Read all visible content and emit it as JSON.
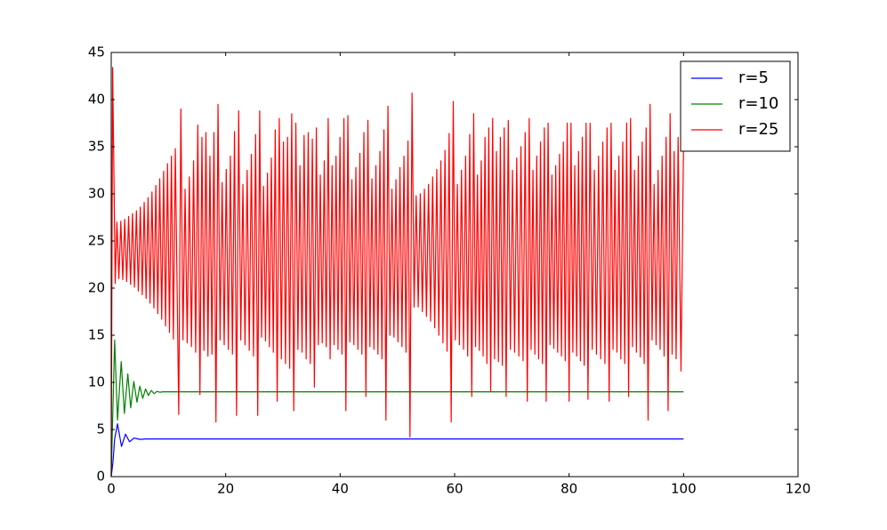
{
  "chart_data": {
    "type": "line",
    "xlim": [
      0,
      120
    ],
    "xticks": [
      0,
      20,
      40,
      60,
      80,
      100,
      120
    ],
    "ylim": [
      0,
      45
    ],
    "yticks": [
      0,
      5,
      10,
      15,
      20,
      25,
      30,
      35,
      40,
      45
    ],
    "legend": "upper right",
    "series": [
      {
        "name": "r=5",
        "color": "#0000ff",
        "x": [
          0,
          0.3,
          0.6,
          1.1,
          1.8,
          2.5,
          3.2,
          4.0,
          5.0,
          6.0,
          100
        ],
        "values": [
          0,
          1.5,
          4.0,
          5.6,
          3.2,
          4.5,
          3.7,
          4.1,
          3.95,
          4.0,
          4.0
        ]
      },
      {
        "name": "r=10",
        "color": "#008000",
        "x": [
          0,
          0.6,
          1.1,
          1.75,
          2.3,
          2.9,
          3.4,
          3.95,
          4.5,
          5.0,
          5.5,
          6.0,
          6.5,
          7.0,
          7.5,
          8.0,
          8.5,
          9.0,
          100
        ],
        "values": [
          0,
          14.5,
          6.0,
          12.2,
          6.7,
          10.9,
          7.3,
          10.1,
          7.9,
          9.6,
          8.3,
          9.3,
          8.6,
          9.15,
          8.8,
          9.05,
          8.95,
          9.0,
          9.0
        ]
      },
      {
        "name": "r=25",
        "color": "#ff0000",
        "x": [
          0,
          0.25,
          0.7,
          1.0,
          1.34,
          1.68,
          2.02,
          2.36,
          2.7,
          3.04,
          3.38,
          3.72,
          4.06,
          4.4,
          4.74,
          5.08,
          5.42,
          5.76,
          6.1,
          6.44,
          6.78,
          7.12,
          7.46,
          7.8,
          8.14,
          8.48,
          8.82,
          9.16,
          9.5,
          9.84,
          10.18,
          10.52,
          10.86,
          11.2,
          11.8,
          12.17,
          12.54,
          12.91,
          13.28,
          13.65,
          14.02,
          14.39,
          14.76,
          15.13,
          15.5,
          15.85,
          16.2,
          16.55,
          16.9,
          17.25,
          17.6,
          17.95,
          18.3,
          18.66,
          19.02,
          19.38,
          19.74,
          20.1,
          20.46,
          20.82,
          21.18,
          21.54,
          21.9,
          22.27,
          22.64,
          23.01,
          23.38,
          23.75,
          24.12,
          24.49,
          24.86,
          25.23,
          25.6,
          25.94,
          26.28,
          26.62,
          26.96,
          27.3,
          27.64,
          27.98,
          28.32,
          28.66,
          29.0,
          29.36,
          29.73,
          30.09,
          30.45,
          30.81,
          31.18,
          31.54,
          31.9,
          32.26,
          32.62,
          32.98,
          33.34,
          33.7,
          34.06,
          34.42,
          34.78,
          35.14,
          35.5,
          35.84,
          36.19,
          36.53,
          36.87,
          37.22,
          37.56,
          37.91,
          38.25,
          38.59,
          38.94,
          39.28,
          39.63,
          39.97,
          40.31,
          40.66,
          41.0,
          41.35,
          41.7,
          42.05,
          42.4,
          42.75,
          43.1,
          43.45,
          43.8,
          44.15,
          44.5,
          44.85,
          45.2,
          45.55,
          45.9,
          46.25,
          46.6,
          46.95,
          47.3,
          47.65,
          48.0,
          48.35,
          48.7,
          49.05,
          49.4,
          49.75,
          50.1,
          50.45,
          50.8,
          51.15,
          51.5,
          51.85,
          52.2,
          52.56,
          52.92,
          53.28,
          53.64,
          54.0,
          54.36,
          54.72,
          55.08,
          55.44,
          55.8,
          56.16,
          56.52,
          56.88,
          57.24,
          57.6,
          57.96,
          58.32,
          58.68,
          59.04,
          59.4,
          59.76,
          60.12,
          60.48,
          60.84,
          61.2,
          61.56,
          61.92,
          62.28,
          62.64,
          63.0,
          63.33,
          63.66,
          63.99,
          64.32,
          64.65,
          64.98,
          65.31,
          65.64,
          65.97,
          66.3,
          66.64,
          66.98,
          67.31,
          67.65,
          67.99,
          68.33,
          68.66,
          69.0,
          69.37,
          69.74,
          70.11,
          70.48,
          70.85,
          71.22,
          71.59,
          71.96,
          72.33,
          72.7,
          73.03,
          73.36,
          73.69,
          74.02,
          74.35,
          74.68,
          75.01,
          75.34,
          75.67,
          76.0,
          76.33,
          76.67,
          77.0,
          77.33,
          77.67,
          78.0,
          78.33,
          78.67,
          79.0,
          79.33,
          79.67,
          80.0,
          80.33,
          80.66,
          80.99,
          81.32,
          81.65,
          81.98,
          82.31,
          82.64,
          82.97,
          83.3,
          83.67,
          84.04,
          84.41,
          84.78,
          85.15,
          85.52,
          85.89,
          86.26,
          86.63,
          87.0,
          87.34,
          87.68,
          88.02,
          88.36,
          88.7,
          89.04,
          89.38,
          89.72,
          90.06,
          90.4,
          90.74,
          91.08,
          91.42,
          91.76,
          92.1,
          92.44,
          92.78,
          93.12,
          93.46,
          93.8,
          94.15,
          94.5,
          94.85,
          95.2,
          95.55,
          95.9,
          96.25,
          96.6,
          96.95,
          97.3,
          97.65,
          98.0,
          98.35,
          98.7,
          99.05,
          99.55,
          100
        ],
        "values": [
          0,
          43.4,
          20.5,
          27.0,
          21.0,
          27.1,
          20.9,
          27.3,
          20.7,
          27.6,
          20.4,
          27.9,
          20.1,
          28.2,
          19.7,
          28.6,
          19.3,
          29.1,
          18.9,
          29.6,
          18.4,
          30.2,
          17.9,
          30.9,
          17.3,
          31.6,
          16.7,
          32.4,
          16.0,
          33.2,
          15.3,
          34.0,
          14.6,
          34.8,
          6.6,
          39.0,
          14.5,
          30.5,
          14.2,
          31.8,
          13.8,
          33.5,
          13.2,
          37.3,
          8.7,
          36.0,
          13.4,
          36.5,
          12.8,
          34.0,
          13.0,
          36.5,
          5.8,
          39.5,
          14.5,
          31.2,
          14.0,
          32.6,
          13.5,
          34.0,
          13.0,
          36.6,
          6.5,
          38.8,
          14.5,
          31.0,
          14.0,
          32.5,
          13.4,
          34.2,
          12.8,
          36.3,
          6.5,
          38.8,
          14.8,
          30.8,
          14.4,
          32.2,
          13.8,
          33.8,
          13.2,
          36.8,
          8.0,
          38.0,
          12.5,
          35.5,
          12.0,
          36.0,
          11.5,
          38.5,
          7.0,
          37.5,
          13.5,
          33.0,
          13.2,
          36.2,
          12.5,
          36.5,
          12.0,
          35.8,
          9.5,
          37.0,
          14.0,
          32.0,
          14.2,
          33.5,
          13.8,
          38.0,
          12.5,
          33.0,
          14.0,
          34.0,
          13.5,
          36.0,
          13.0,
          38.0,
          7.0,
          38.3,
          14.3,
          31.5,
          14.0,
          32.8,
          13.5,
          34.3,
          13.0,
          36.5,
          8.5,
          37.8,
          13.8,
          31.6,
          13.5,
          33.0,
          13.0,
          34.5,
          12.5,
          36.8,
          6.0,
          39.3,
          15.0,
          30.5,
          14.8,
          31.5,
          14.3,
          32.8,
          13.8,
          34.0,
          13.2,
          35.6,
          4.2,
          40.7,
          18.0,
          29.8,
          18.0,
          30.0,
          17.5,
          30.5,
          17.0,
          31.0,
          16.5,
          31.8,
          15.8,
          32.6,
          15.0,
          33.5,
          14.2,
          34.6,
          13.3,
          36.4,
          5.8,
          39.8,
          14.5,
          31.0,
          14.0,
          32.5,
          13.5,
          34.0,
          12.8,
          36.3,
          8.5,
          38.5,
          13.8,
          32.0,
          13.4,
          33.5,
          12.8,
          36.0,
          12.0,
          37.0,
          9.0,
          38.0,
          12.5,
          34.5,
          12.2,
          36.0,
          11.8,
          37.0,
          8.5,
          37.8,
          13.5,
          32.5,
          13.2,
          33.8,
          12.8,
          35.0,
          12.3,
          36.5,
          8.0,
          38.0,
          13.5,
          32.5,
          13.0,
          34.0,
          12.5,
          35.5,
          12.0,
          37.0,
          8.0,
          37.5,
          14.0,
          32.0,
          13.6,
          33.0,
          13.2,
          34.2,
          12.8,
          35.5,
          12.3,
          37.5,
          8.0,
          37.5,
          13.2,
          33.0,
          12.8,
          34.5,
          12.3,
          36.0,
          11.8,
          37.5,
          8.2,
          37.5,
          13.5,
          32.5,
          13.0,
          34.0,
          12.5,
          35.5,
          12.0,
          37.0,
          8.0,
          37.5,
          13.5,
          32.5,
          13.2,
          34.0,
          12.5,
          35.5,
          12.0,
          37.5,
          8.5,
          38.0,
          13.8,
          32.5,
          13.2,
          34.0,
          12.7,
          35.5,
          12.0,
          37.0,
          6.0,
          39.5,
          14.5,
          31.0,
          14.0,
          32.5,
          13.5,
          34.0,
          12.8,
          36.0,
          7.0,
          38.5,
          13.0,
          34.5,
          12.5,
          36.0,
          11.2,
          35.5
        ]
      }
    ]
  }
}
